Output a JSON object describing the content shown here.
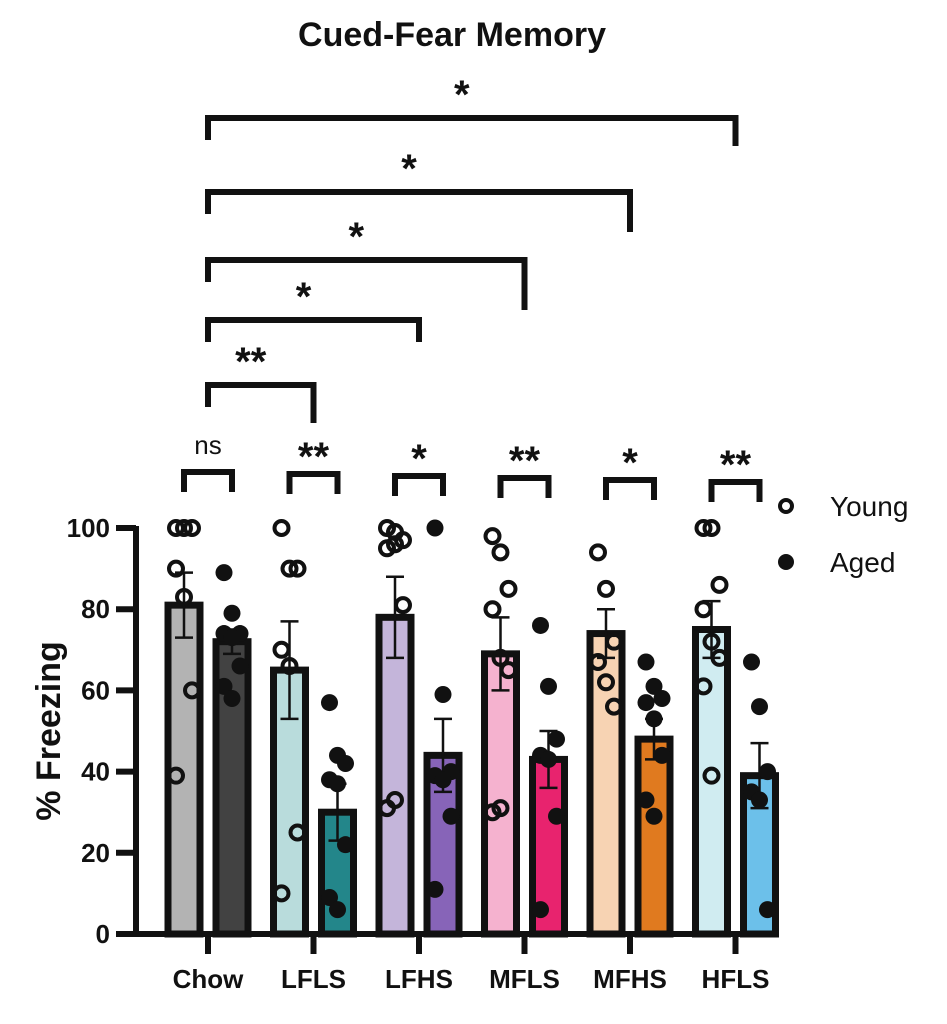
{
  "chart_data": {
    "type": "bar",
    "title": "Cued-Fear Memory",
    "xlabel": "",
    "ylabel": "% Freezing",
    "ylim": [
      0,
      100
    ],
    "yticks": [
      0,
      20,
      40,
      60,
      80,
      100
    ],
    "grid": false,
    "legend_position": "right",
    "categories": [
      "Chow",
      "LFLS",
      "LFHS",
      "MFLS",
      "MFHS",
      "HFLS"
    ],
    "series": [
      {
        "name": "Young",
        "marker": "open-circle",
        "means": [
          81,
          65,
          78,
          69,
          74,
          75
        ],
        "sem": [
          8,
          12,
          10,
          9,
          6,
          7
        ],
        "colors": [
          "#b3b3b3",
          "#b9dcdc",
          "#c4b5da",
          "#f5b2cf",
          "#f7d3b3",
          "#d0ecf1"
        ],
        "points": [
          [
            100,
            100,
            100,
            90,
            83,
            60,
            39
          ],
          [
            100,
            90,
            90,
            70,
            66,
            25,
            10
          ],
          [
            100,
            99,
            97,
            95,
            96,
            81,
            31,
            33
          ],
          [
            98,
            94,
            85,
            80,
            68,
            65,
            30,
            31
          ],
          [
            94,
            85,
            72,
            67,
            62,
            56
          ],
          [
            100,
            100,
            86,
            80,
            72,
            68,
            61,
            39
          ]
        ]
      },
      {
        "name": "Aged",
        "marker": "filled-circle",
        "means": [
          72,
          30,
          44,
          43,
          48,
          39
        ],
        "sem": [
          3,
          7,
          9,
          7,
          5,
          8
        ],
        "colors": [
          "#424242",
          "#23868a",
          "#8764b8",
          "#e8236e",
          "#e07a1f",
          "#6cc0ea"
        ],
        "points": [
          [
            89,
            79,
            74,
            74,
            73,
            66,
            61,
            58
          ],
          [
            57,
            44,
            42,
            38,
            37,
            22,
            9,
            6
          ],
          [
            100,
            59,
            40,
            39,
            38,
            29,
            11
          ],
          [
            76,
            61,
            48,
            44,
            43,
            29,
            6
          ],
          [
            67,
            61,
            58,
            57,
            53,
            44,
            33,
            29
          ],
          [
            67,
            56,
            40,
            35,
            33,
            6
          ]
        ]
      }
    ],
    "within_group_significance": [
      "ns",
      "**",
      "*",
      "**",
      "*",
      "**"
    ],
    "between_group_significance": [
      {
        "from": "Chow",
        "to": "LFLS",
        "label": "**"
      },
      {
        "from": "Chow",
        "to": "LFHS",
        "label": "*"
      },
      {
        "from": "Chow",
        "to": "MFLS",
        "label": "*"
      },
      {
        "from": "Chow",
        "to": "MFHS",
        "label": "*"
      },
      {
        "from": "Chow",
        "to": "HFLS",
        "label": "*"
      }
    ]
  }
}
